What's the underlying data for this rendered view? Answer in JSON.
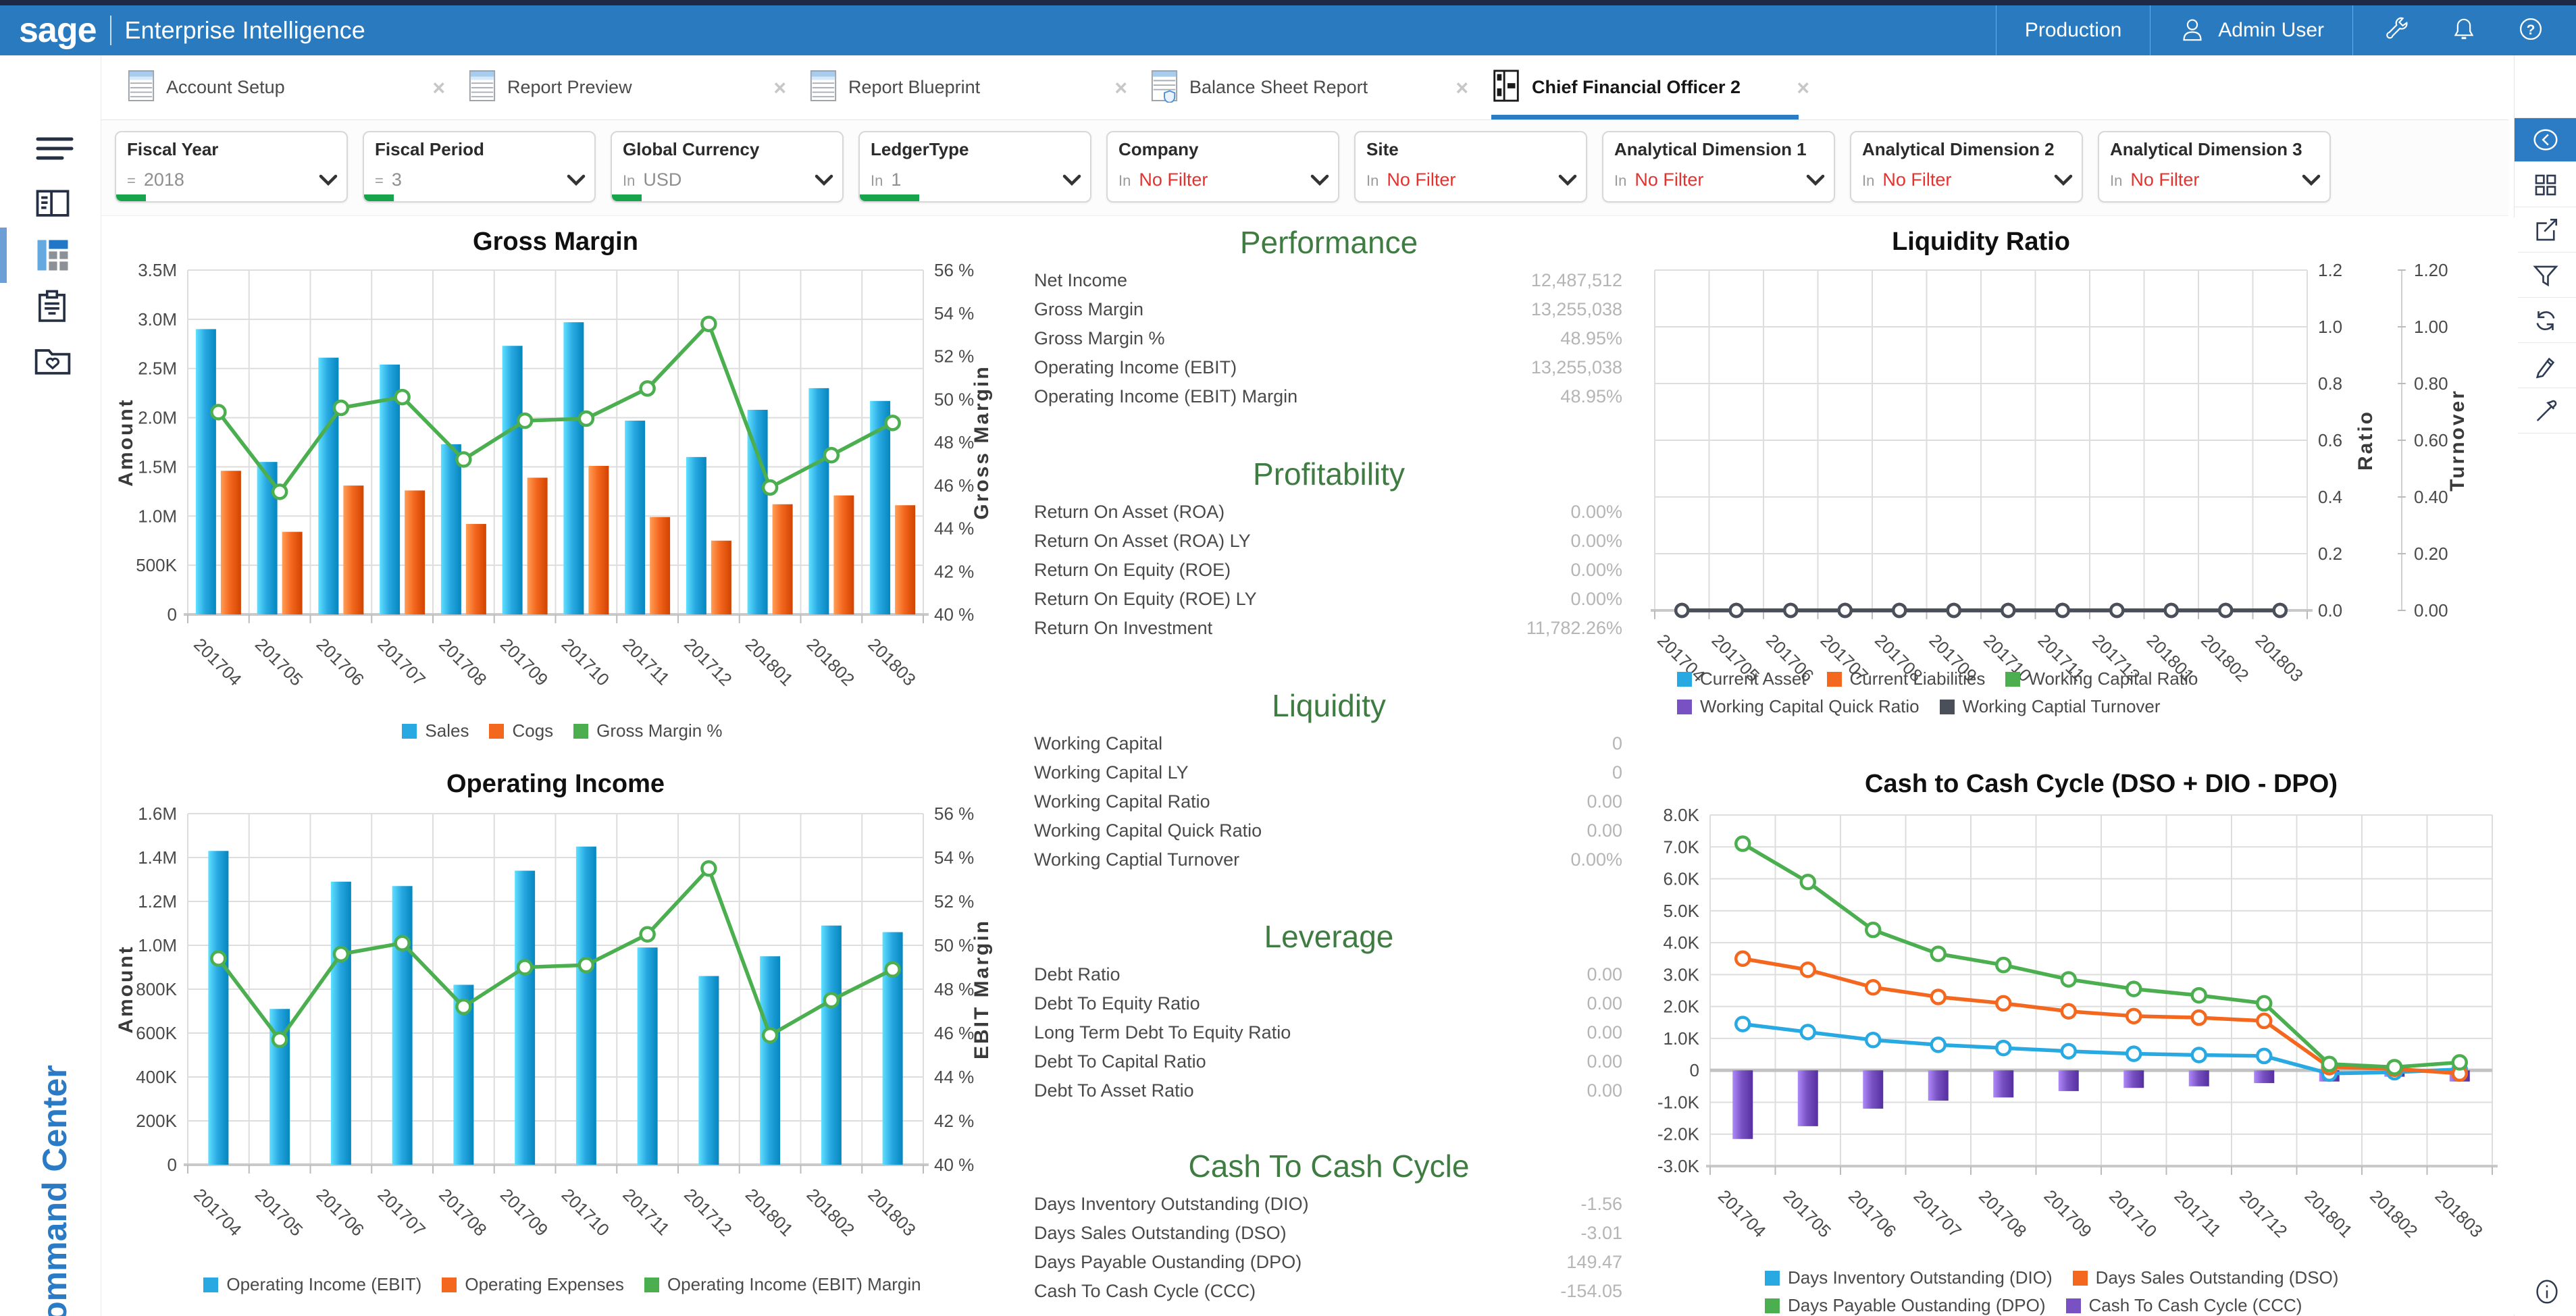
{
  "header": {
    "brand": "sage",
    "product": "Enterprise Intelligence",
    "environment": "Production",
    "user": "Admin User"
  },
  "tabs": [
    {
      "label": "Account Setup",
      "icon": "spreadsheet",
      "active": false,
      "close": "×"
    },
    {
      "label": "Report Preview",
      "icon": "spreadsheet",
      "active": false,
      "close": "×"
    },
    {
      "label": "Report Blueprint",
      "icon": "spreadsheet",
      "active": false,
      "close": "×"
    },
    {
      "label": "Balance Sheet Report",
      "icon": "spreadsheet-shield",
      "active": false,
      "close": "×"
    },
    {
      "label": "Chief Financial Officer 2",
      "icon": "dashboard",
      "active": true,
      "close": "×"
    }
  ],
  "filter_bar": [
    {
      "label": "Fiscal Year",
      "operator": "=",
      "value": "2018",
      "no_filter": false,
      "indicator": "small"
    },
    {
      "label": "Fiscal Period",
      "operator": "=",
      "value": "3",
      "no_filter": false,
      "indicator": "small"
    },
    {
      "label": "Global Currency",
      "operator": "In",
      "value": "USD",
      "no_filter": false,
      "indicator": "small"
    },
    {
      "label": "LedgerType",
      "operator": "In",
      "value": "1",
      "no_filter": false,
      "indicator": "wide"
    },
    {
      "label": "Company",
      "operator": "In",
      "value": "No Filter",
      "no_filter": true,
      "indicator": "none"
    },
    {
      "label": "Site",
      "operator": "In",
      "value": "No Filter",
      "no_filter": true,
      "indicator": "none"
    },
    {
      "label": "Analytical Dimension 1",
      "operator": "In",
      "value": "No Filter",
      "no_filter": true,
      "indicator": "none"
    },
    {
      "label": "Analytical Dimension 2",
      "operator": "In",
      "value": "No Filter",
      "no_filter": true,
      "indicator": "none"
    },
    {
      "label": "Analytical Dimension 3",
      "operator": "In",
      "value": "No Filter",
      "no_filter": true,
      "indicator": "none"
    }
  ],
  "sidebar": {
    "command_center": "Command Center"
  },
  "kpi_panel": {
    "sections": [
      {
        "title": "Performance",
        "rows": [
          {
            "label": "Net Income",
            "value": "12,487,512"
          },
          {
            "label": "Gross Margin",
            "value": "13,255,038"
          },
          {
            "label": "Gross Margin %",
            "value": "48.95%"
          },
          {
            "label": "Operating Income (EBIT)",
            "value": "13,255,038"
          },
          {
            "label": "Operating Income (EBIT) Margin",
            "value": "48.95%"
          }
        ]
      },
      {
        "title": "Profitability",
        "rows": [
          {
            "label": "Return On Asset (ROA)",
            "value": "0.00%"
          },
          {
            "label": "Return On Asset (ROA) LY",
            "value": "0.00%"
          },
          {
            "label": "Return On Equity (ROE)",
            "value": "0.00%"
          },
          {
            "label": "Return On Equity (ROE) LY",
            "value": "0.00%"
          },
          {
            "label": "Return On Investment",
            "value": "11,782.26%"
          }
        ]
      },
      {
        "title": "Liquidity",
        "rows": [
          {
            "label": "Working Capital",
            "value": "0"
          },
          {
            "label": "Working Capital LY",
            "value": "0"
          },
          {
            "label": "Working Capital Ratio",
            "value": "0.00"
          },
          {
            "label": "Working Capital Quick Ratio",
            "value": "0.00"
          },
          {
            "label": "Working Captial Turnover",
            "value": "0.00%"
          }
        ]
      },
      {
        "title": "Leverage",
        "rows": [
          {
            "label": "Debt Ratio",
            "value": "0.00"
          },
          {
            "label": "Debt To Equity Ratio",
            "value": "0.00"
          },
          {
            "label": "Long Term Debt To Equity Ratio",
            "value": "0.00"
          },
          {
            "label": "Debt To Capital Ratio",
            "value": "0.00"
          },
          {
            "label": "Debt To Asset Ratio",
            "value": "0.00"
          }
        ]
      },
      {
        "title": "Cash To Cash Cycle",
        "rows": [
          {
            "label": "Days Inventory Outstanding (DIO)",
            "value": "-1.56"
          },
          {
            "label": "Days Sales Outstanding (DSO)",
            "value": "-3.01"
          },
          {
            "label": "Days Payable Oustanding (DPO)",
            "value": "149.47"
          },
          {
            "label": "Cash To Cash Cycle (CCC)",
            "value": "-154.05"
          }
        ]
      }
    ]
  },
  "colors": {
    "header_blue": "#2A7AC0",
    "accent_blue": "#2B7CC5",
    "filter_green": "#18A44C",
    "no_filter_red": "#E5322E",
    "kpi_title_green": "#3E7C41",
    "chart_blue": "#29A9E1",
    "chart_orange": "#F4671F",
    "chart_green": "#4BAE4F",
    "chart_purple": "#7852C2",
    "chart_gray": "#4A4F59"
  },
  "chart_data": [
    {
      "key": "gross_margin",
      "type": "bar",
      "title": "Gross Margin",
      "categories": [
        "201704",
        "201705",
        "201706",
        "201707",
        "201708",
        "201709",
        "201710",
        "201711",
        "201712",
        "201801",
        "201802",
        "201803"
      ],
      "axes": [
        {
          "id": "amount",
          "side": "left",
          "title": "Amount",
          "min": 0,
          "max": 3500000,
          "grid": true,
          "ticks": [
            {
              "v": 0,
              "l": "0"
            },
            {
              "v": 500000,
              "l": "500K"
            },
            {
              "v": 1000000,
              "l": "1.0M"
            },
            {
              "v": 1500000,
              "l": "1.5M"
            },
            {
              "v": 2000000,
              "l": "2.0M"
            },
            {
              "v": 2500000,
              "l": "2.5M"
            },
            {
              "v": 3000000,
              "l": "3.0M"
            },
            {
              "v": 3500000,
              "l": "3.5M"
            }
          ]
        },
        {
          "id": "pct",
          "side": "right",
          "title": "Gross Margin",
          "min": 40,
          "max": 56,
          "grid": false,
          "ticks": [
            {
              "v": 40,
              "l": "40 %"
            },
            {
              "v": 42,
              "l": "42 %"
            },
            {
              "v": 44,
              "l": "44 %"
            },
            {
              "v": 46,
              "l": "46 %"
            },
            {
              "v": 48,
              "l": "48 %"
            },
            {
              "v": 50,
              "l": "50 %"
            },
            {
              "v": 52,
              "l": "52 %"
            },
            {
              "v": 54,
              "l": "54 %"
            },
            {
              "v": 56,
              "l": "56 %"
            }
          ]
        }
      ],
      "series": [
        {
          "name": "Sales",
          "kind": "bar",
          "axis": "amount",
          "color": "chart_blue",
          "values": [
            2900000,
            1550000,
            2610000,
            2540000,
            1730000,
            2730000,
            2970000,
            1970000,
            1600000,
            2080000,
            2300000,
            2170000
          ]
        },
        {
          "name": "Cogs",
          "kind": "bar",
          "axis": "amount",
          "color": "chart_orange",
          "values": [
            1460000,
            840000,
            1310000,
            1260000,
            920000,
            1390000,
            1510000,
            990000,
            750000,
            1120000,
            1210000,
            1110000
          ]
        },
        {
          "name": "Gross Margin %",
          "kind": "line",
          "axis": "pct",
          "color": "chart_green",
          "values": [
            49.4,
            45.7,
            49.6,
            50.1,
            47.2,
            49.0,
            49.1,
            50.5,
            53.5,
            45.9,
            47.4,
            48.9
          ]
        }
      ]
    },
    {
      "key": "operating_income",
      "type": "bar",
      "title": "Operating Income",
      "categories": [
        "201704",
        "201705",
        "201706",
        "201707",
        "201708",
        "201709",
        "201710",
        "201711",
        "201712",
        "201801",
        "201802",
        "201803"
      ],
      "axes": [
        {
          "id": "amount",
          "side": "left",
          "title": "Amount",
          "min": 0,
          "max": 1600000,
          "grid": true,
          "ticks": [
            {
              "v": 0,
              "l": "0"
            },
            {
              "v": 200000,
              "l": "200K"
            },
            {
              "v": 400000,
              "l": "400K"
            },
            {
              "v": 600000,
              "l": "600K"
            },
            {
              "v": 800000,
              "l": "800K"
            },
            {
              "v": 1000000,
              "l": "1.0M"
            },
            {
              "v": 1200000,
              "l": "1.2M"
            },
            {
              "v": 1400000,
              "l": "1.4M"
            },
            {
              "v": 1600000,
              "l": "1.6M"
            }
          ]
        },
        {
          "id": "pct",
          "side": "right",
          "title": "EBIT Margin",
          "min": 40,
          "max": 56,
          "grid": false,
          "ticks": [
            {
              "v": 40,
              "l": "40 %"
            },
            {
              "v": 42,
              "l": "42 %"
            },
            {
              "v": 44,
              "l": "44 %"
            },
            {
              "v": 46,
              "l": "46 %"
            },
            {
              "v": 48,
              "l": "48 %"
            },
            {
              "v": 50,
              "l": "50 %"
            },
            {
              "v": 52,
              "l": "52 %"
            },
            {
              "v": 54,
              "l": "54 %"
            },
            {
              "v": 56,
              "l": "56 %"
            }
          ]
        }
      ],
      "series": [
        {
          "name": "Operating Income (EBIT)",
          "kind": "bar",
          "axis": "amount",
          "color": "chart_blue",
          "values": [
            1430000,
            710000,
            1290000,
            1270000,
            820000,
            1340000,
            1450000,
            990000,
            860000,
            950000,
            1090000,
            1060000
          ]
        },
        {
          "name": "Operating Expenses",
          "kind": "bar",
          "axis": "amount",
          "color": "chart_orange",
          "values": [
            0,
            0,
            0,
            0,
            0,
            0,
            0,
            0,
            0,
            0,
            0,
            0
          ]
        },
        {
          "name": "Operating Income (EBIT) Margin",
          "kind": "line",
          "axis": "pct",
          "color": "chart_green",
          "values": [
            49.4,
            45.7,
            49.6,
            50.1,
            47.2,
            49.0,
            49.1,
            50.5,
            53.5,
            45.9,
            47.5,
            48.9
          ]
        }
      ]
    },
    {
      "key": "liquidity_ratio",
      "type": "line",
      "title": "Liquidity Ratio",
      "categories": [
        "201704",
        "201705",
        "201706",
        "201707",
        "201708",
        "201709",
        "201710",
        "201711",
        "201712",
        "201801",
        "201802",
        "201803"
      ],
      "axes": [
        {
          "id": "ratio",
          "side": "right",
          "title": "Ratio",
          "min": 0,
          "max": 1.2,
          "grid": true,
          "ticks": [
            {
              "v": 0,
              "l": "0.0"
            },
            {
              "v": 0.2,
              "l": "0.2"
            },
            {
              "v": 0.4,
              "l": "0.4"
            },
            {
              "v": 0.6,
              "l": "0.6"
            },
            {
              "v": 0.8,
              "l": "0.8"
            },
            {
              "v": 1.0,
              "l": "1.0"
            },
            {
              "v": 1.2,
              "l": "1.2"
            }
          ]
        },
        {
          "id": "turnover",
          "side": "right2",
          "title": "Turnover",
          "min": 0,
          "max": 1.2,
          "grid": false,
          "ticks": [
            {
              "v": 0,
              "l": "0.00"
            },
            {
              "v": 0.2,
              "l": "0.20"
            },
            {
              "v": 0.4,
              "l": "0.40"
            },
            {
              "v": 0.6,
              "l": "0.60"
            },
            {
              "v": 0.8,
              "l": "0.80"
            },
            {
              "v": 1.0,
              "l": "1.00"
            },
            {
              "v": 1.2,
              "l": "1.20"
            }
          ]
        }
      ],
      "series": [
        {
          "name": "Current Asset",
          "kind": "line",
          "axis": "ratio",
          "color": "chart_blue",
          "values": [
            0,
            0,
            0,
            0,
            0,
            0,
            0,
            0,
            0,
            0,
            0,
            0
          ]
        },
        {
          "name": "Current Liabilities",
          "kind": "line",
          "axis": "ratio",
          "color": "chart_orange",
          "values": [
            0,
            0,
            0,
            0,
            0,
            0,
            0,
            0,
            0,
            0,
            0,
            0
          ]
        },
        {
          "name": "Working Capital Ratio",
          "kind": "line",
          "axis": "ratio",
          "color": "chart_green",
          "values": [
            0,
            0,
            0,
            0,
            0,
            0,
            0,
            0,
            0,
            0,
            0,
            0
          ]
        },
        {
          "name": "Working Capital Quick Ratio",
          "kind": "line",
          "axis": "ratio",
          "color": "chart_purple",
          "values": [
            0,
            0,
            0,
            0,
            0,
            0,
            0,
            0,
            0,
            0,
            0,
            0
          ]
        },
        {
          "name": "Working Captial Turnover",
          "kind": "line",
          "axis": "turnover",
          "color": "chart_gray",
          "values": [
            0,
            0,
            0,
            0,
            0,
            0,
            0,
            0,
            0,
            0,
            0,
            0
          ]
        }
      ]
    },
    {
      "key": "cash_to_cash",
      "type": "bar",
      "title": "Cash to Cash Cycle (DSO + DIO - DPO)",
      "categories": [
        "201704",
        "201705",
        "201706",
        "201707",
        "201708",
        "201709",
        "201710",
        "201711",
        "201712",
        "201801",
        "201802",
        "201803"
      ],
      "axes": [
        {
          "id": "days",
          "side": "left",
          "title": "",
          "min": -3000,
          "max": 8000,
          "grid": true,
          "ticks": [
            {
              "v": 8000,
              "l": "8.0K"
            },
            {
              "v": 7000,
              "l": "7.0K"
            },
            {
              "v": 6000,
              "l": "6.0K"
            },
            {
              "v": 5000,
              "l": "5.0K"
            },
            {
              "v": 4000,
              "l": "4.0K"
            },
            {
              "v": 3000,
              "l": "3.0K"
            },
            {
              "v": 2000,
              "l": "2.0K"
            },
            {
              "v": 1000,
              "l": "1.0K"
            },
            {
              "v": 0,
              "l": "0"
            },
            {
              "v": -1000,
              "l": "-1.0K"
            },
            {
              "v": -2000,
              "l": "-2.0K"
            },
            {
              "v": -3000,
              "l": "-3.0K"
            }
          ]
        }
      ],
      "series": [
        {
          "name": "Cash To Cash Cycle (CCC)",
          "kind": "bar",
          "axis": "days",
          "color": "chart_purple",
          "values": [
            -2150,
            -1750,
            -1200,
            -950,
            -850,
            -650,
            -550,
            -500,
            -400,
            -350,
            -200,
            -350
          ]
        },
        {
          "name": "Days Inventory Outstanding (DIO)",
          "kind": "line",
          "axis": "days",
          "color": "chart_blue",
          "values": [
            1450,
            1200,
            950,
            800,
            700,
            600,
            520,
            480,
            450,
            -100,
            -60,
            30
          ]
        },
        {
          "name": "Days Sales Outstanding (DSO)",
          "kind": "line",
          "axis": "days",
          "color": "chart_orange",
          "values": [
            3500,
            3150,
            2600,
            2300,
            2100,
            1850,
            1700,
            1650,
            1550,
            100,
            50,
            -100
          ]
        },
        {
          "name": "Days Payable Oustanding (DPO)",
          "kind": "line",
          "axis": "days",
          "color": "chart_green",
          "values": [
            7100,
            5900,
            4400,
            3650,
            3300,
            2850,
            2550,
            2350,
            2100,
            200,
            100,
            250
          ]
        }
      ],
      "legend_order": [
        "Days Inventory Outstanding (DIO)",
        "Days Sales Outstanding (DSO)",
        "Days Payable Oustanding (DPO)",
        "Cash To Cash Cycle (CCC)"
      ]
    }
  ]
}
